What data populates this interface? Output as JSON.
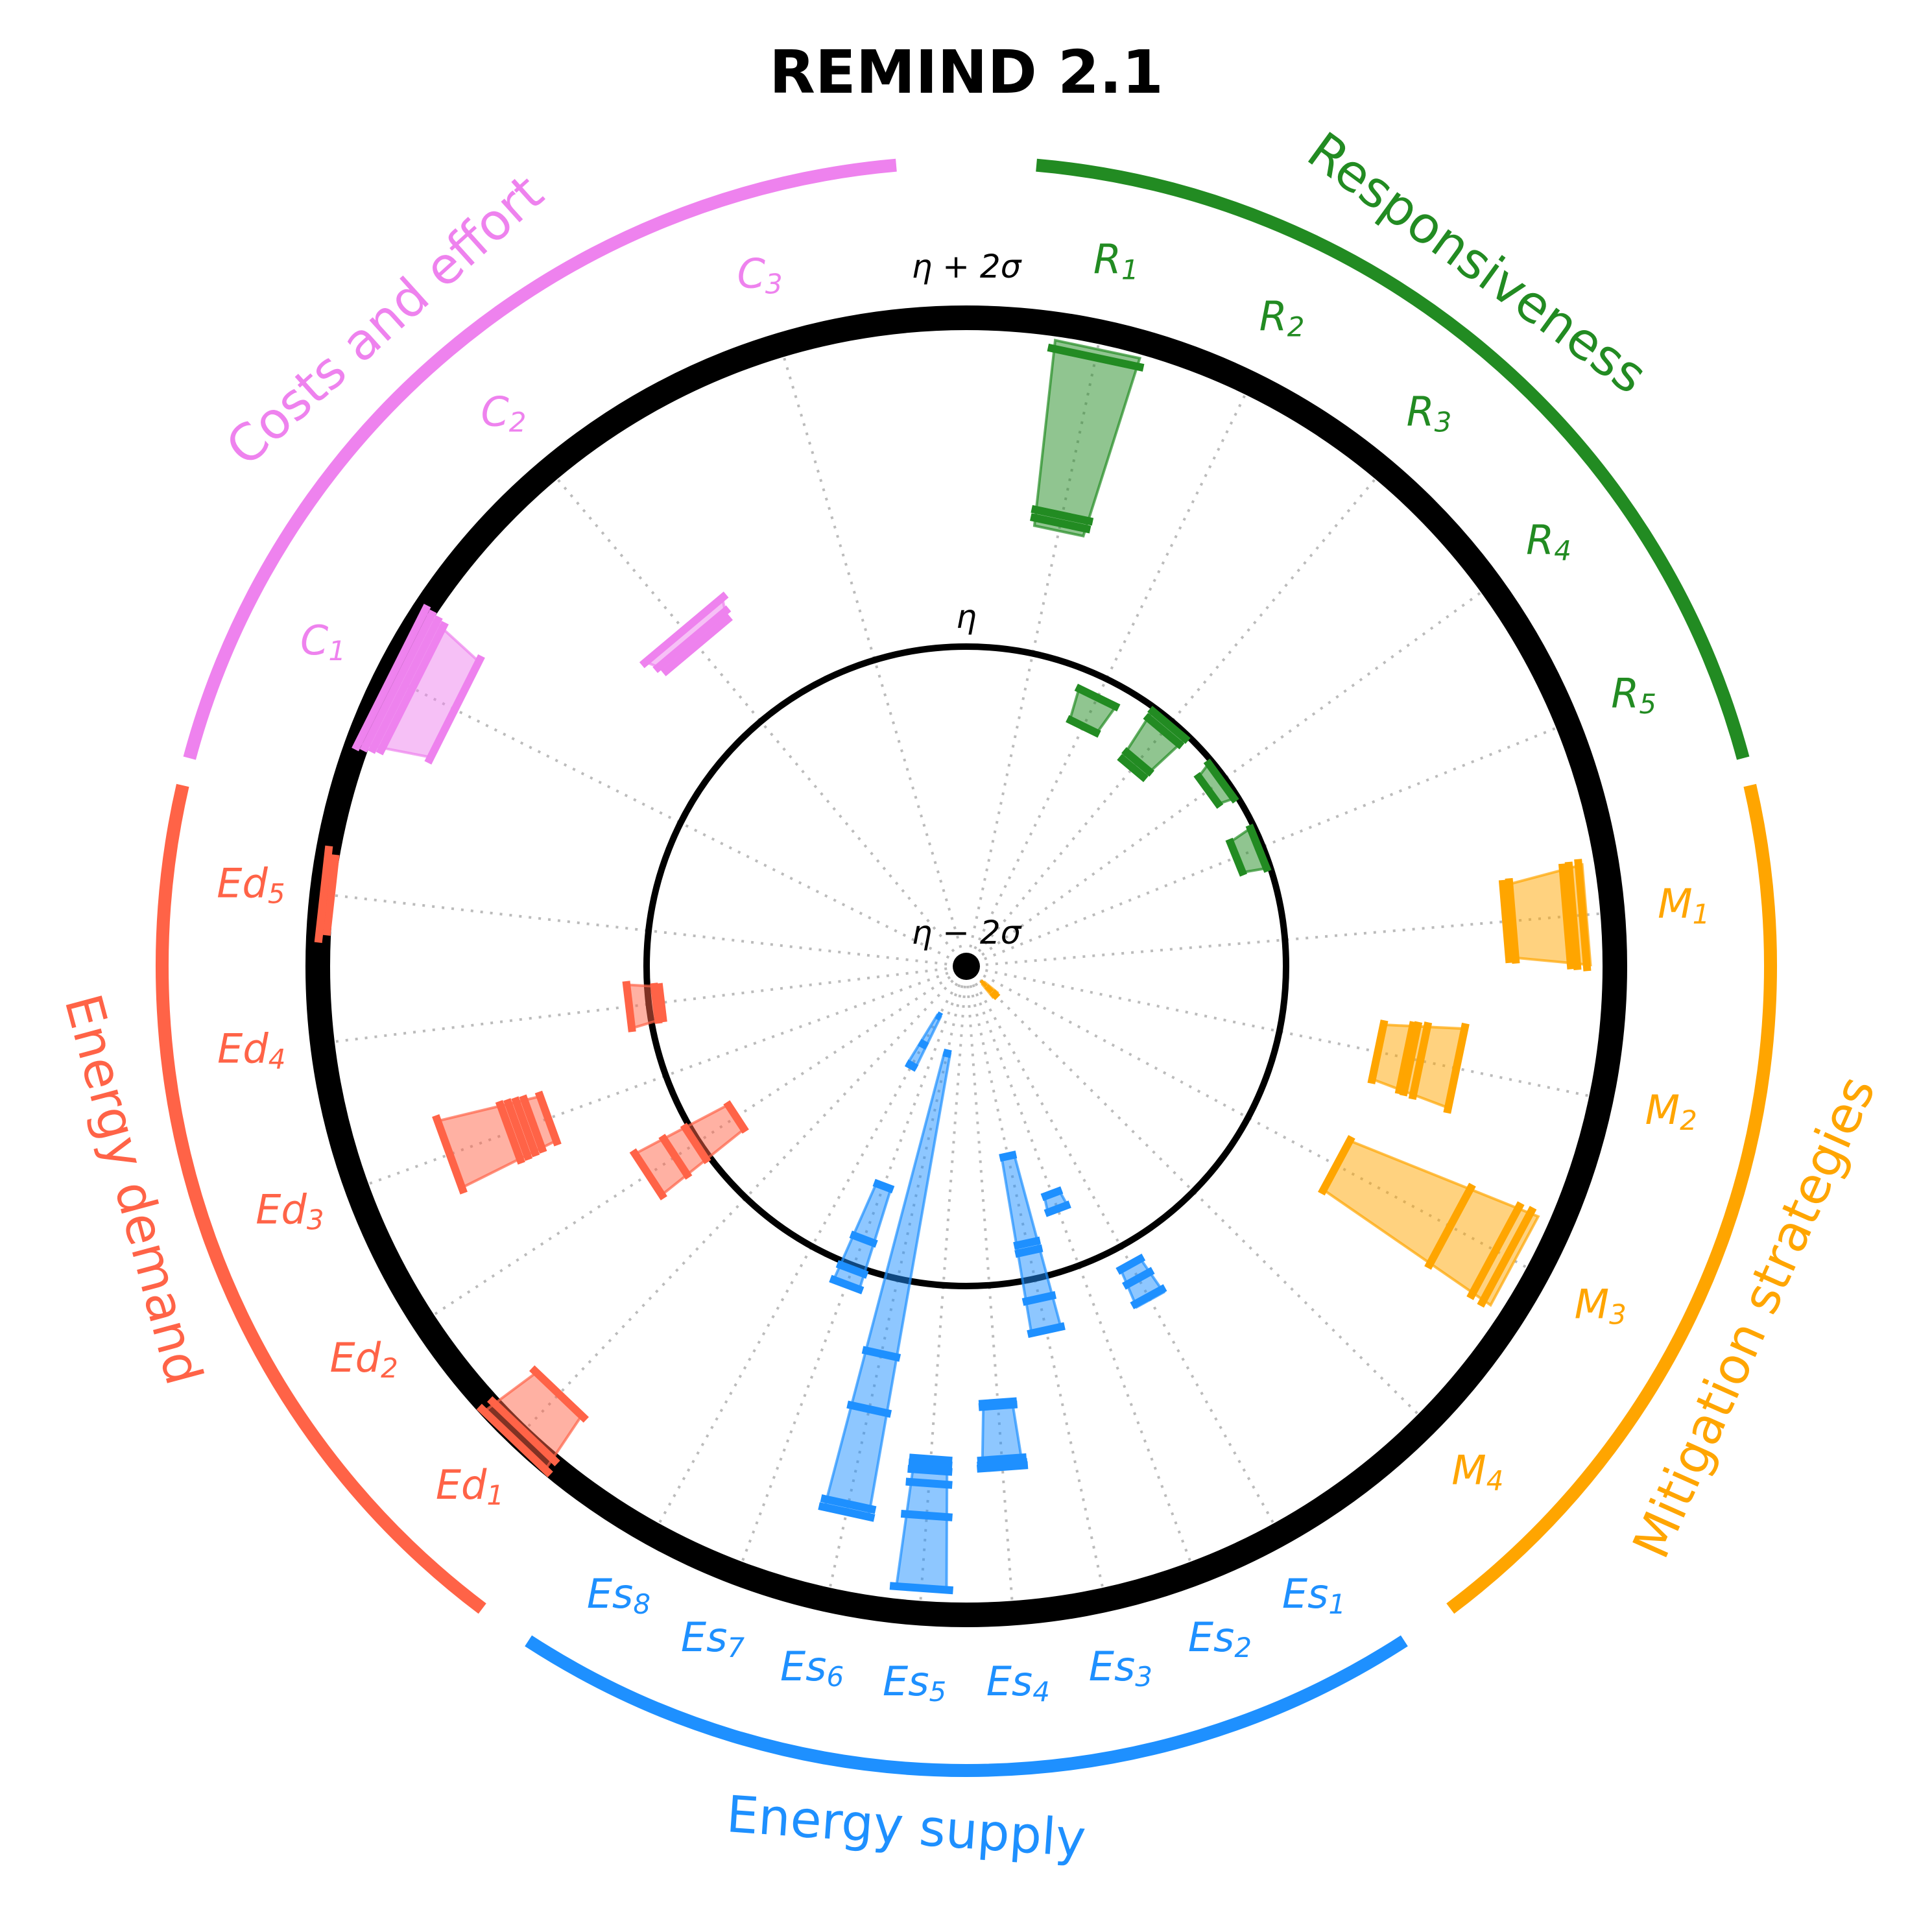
{
  "chart_data": {
    "type": "radial-range",
    "title": "REMIND 2.1",
    "radial_scale": {
      "min_label": "η − 2σ",
      "mid_label": "η",
      "max_label": "η + 2σ",
      "range": [
        -2,
        2
      ]
    },
    "groups": [
      {
        "name": "Responsiveness",
        "color": "#228b22",
        "indicators": [
          {
            "base": "R",
            "sub": "1",
            "low": 0.75,
            "high": 1.9,
            "marks": [
              0.8,
              0.85,
              1.85
            ]
          },
          {
            "base": "R",
            "sub": "2",
            "low": -0.35,
            "high": -0.15,
            "marks": [
              -0.35,
              -0.15
            ]
          },
          {
            "base": "R",
            "sub": "3",
            "low": -0.4,
            "high": -0.05,
            "marks": [
              -0.4,
              -0.35,
              -0.1,
              -0.05
            ]
          },
          {
            "base": "R",
            "sub": "4",
            "low": -0.15,
            "high": -0.05,
            "marks": [
              -0.15,
              -0.05
            ]
          },
          {
            "base": "R",
            "sub": "5",
            "low": -0.2,
            "high": -0.05,
            "marks": [
              -0.2,
              -0.05
            ]
          }
        ]
      },
      {
        "name": "Mitigation strategies",
        "color": "#ffa500",
        "indicators": [
          {
            "base": "M",
            "sub": "1",
            "low": 1.35,
            "high": 1.85,
            "marks": [
              1.35,
              1.39,
              1.73,
              1.77,
              1.83
            ]
          },
          {
            "base": "M",
            "sub": "2",
            "low": 0.6,
            "high": 1.1,
            "marks": [
              0.6,
              0.78,
              0.81,
              0.87,
              1.1
            ]
          },
          {
            "base": "M",
            "sub": "3",
            "low": 0.6,
            "high": 1.85,
            "marks": [
              0.6,
              1.4,
              1.72,
              1.8
            ]
          },
          {
            "base": "M",
            "sub": "4",
            "low": -1.85,
            "high": -1.75,
            "marks": [
              -1.85,
              -1.8,
              -1.75
            ]
          }
        ]
      },
      {
        "name": "Energy supply",
        "color": "#1e90ff",
        "indicators": [
          {
            "base": "Es",
            "sub": "1",
            "low": 0.1,
            "high": 0.35,
            "marks": [
              0.1,
              0.2,
              0.33
            ]
          },
          {
            "base": "Es",
            "sub": "2",
            "low": -0.5,
            "high": -0.4,
            "marks": [
              -0.5,
              -0.4
            ]
          },
          {
            "base": "Es",
            "sub": "3",
            "low": -0.8,
            "high": 0.3,
            "marks": [
              -0.8,
              -0.25,
              -0.2,
              0.1,
              0.3
            ]
          },
          {
            "base": "Es",
            "sub": "4",
            "low": 0.7,
            "high": 1.1,
            "marks": [
              0.7,
              0.72,
              1.05,
              1.08,
              1.1
            ]
          },
          {
            "base": "Es",
            "sub": "5",
            "low": 1.05,
            "high": 1.85,
            "marks": [
              1.05,
              1.08,
              1.12,
              1.2,
              1.4,
              1.85
            ]
          },
          {
            "base": "Es",
            "sub": "6",
            "low": -1.45,
            "high": 1.45,
            "marks": [
              -1.45,
              0.45,
              0.8,
              1.4,
              1.45
            ]
          },
          {
            "base": "Es",
            "sub": "7",
            "low": -0.55,
            "high": 0.1,
            "marks": [
              -0.55,
              -0.2,
              0.0,
              0.1
            ]
          },
          {
            "base": "Es",
            "sub": "8",
            "low": -1.65,
            "high": -1.3,
            "marks": [
              -1.65,
              -1.45,
              -1.3
            ]
          }
        ]
      },
      {
        "name": "Energy demand",
        "color": "#ff6347",
        "indicators": [
          {
            "base": "Ed",
            "sub": "1",
            "low": 1.65,
            "high": 2.05,
            "marks": [
              1.65,
              1.97,
              2.05
            ]
          },
          {
            "base": "Ed",
            "sub": "2",
            "low": -0.3,
            "high": 0.35,
            "marks": [
              -0.3,
              0.0,
              0.15,
              0.35
            ]
          },
          {
            "base": "Ed",
            "sub": "3",
            "low": 0.75,
            "high": 1.4,
            "marks": [
              0.75,
              0.85,
              0.9,
              0.95,
              1.0,
              1.4
            ]
          },
          {
            "base": "Ed",
            "sub": "4",
            "low": -0.1,
            "high": 0.1,
            "marks": [
              -0.1,
              -0.07,
              0.1
            ]
          },
          {
            "base": "Ed",
            "sub": "5",
            "low": 1.95,
            "high": 2.0,
            "marks": [
              1.95,
              2.0
            ]
          }
        ]
      },
      {
        "name": "Costs and effort",
        "color": "#ee82ee",
        "indicators": [
          {
            "base": "C",
            "sub": "1",
            "low": 1.55,
            "high": 2.0,
            "marks": [
              1.55,
              1.85,
              1.9,
              1.95,
              2.0
            ]
          },
          {
            "base": "C",
            "sub": "2",
            "low": 0.6,
            "high": 0.73,
            "marks": [
              0.6,
              0.65,
              0.73
            ]
          },
          {
            "base": "C",
            "sub": "3",
            "low": 0.0,
            "high": 0.0,
            "marks": []
          }
        ]
      }
    ],
    "colors": {
      "Responsiveness": "#228b22",
      "Mitigation strategies": "#ffa500",
      "Energy supply": "#1e90ff",
      "Energy demand": "#ff6347",
      "Costs and effort": "#ee82ee"
    }
  }
}
